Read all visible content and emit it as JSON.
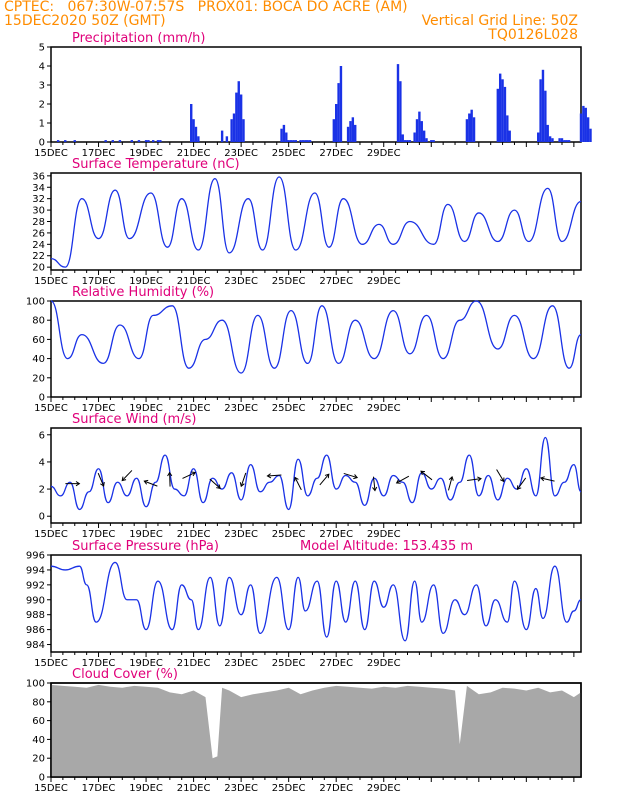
{
  "header": {
    "line1": "CPTEC:   067:30W-07:57S   PROX01: BOCA DO ACRE (AM)",
    "line2": "15DEC2020 50Z (GMT)",
    "right2": "Vertical Grid Line: 50Z",
    "right3": "TQ0126L028"
  },
  "colors": {
    "header": "#ff8c00",
    "title": "#e0007a",
    "line": "#1a32e6",
    "cloud": "#a8a8a8"
  },
  "date_labels": [
    "15DEC",
    "17DEC",
    "19DEC",
    "21DEC",
    "23DEC",
    "25DEC",
    "27DEC",
    "29DEC"
  ],
  "chart_data": [
    {
      "id": "precip",
      "type": "bar",
      "title": "Precipitation (mm/h)",
      "ylim": [
        0,
        5
      ],
      "yticks": [
        "0",
        "1",
        "2",
        "3",
        "4",
        "5"
      ],
      "x": [
        0.3,
        0.6,
        1.0,
        2.3,
        2.6,
        2.9,
        3.4,
        3.7,
        4.0,
        4.1,
        4.3,
        4.5,
        4.6,
        5.9,
        6.0,
        6.1,
        6.2,
        7.2,
        7.4,
        7.6,
        7.7,
        7.8,
        7.9,
        8.0,
        8.1,
        9.7,
        9.8,
        9.9,
        10.0,
        10.1,
        10.2,
        10.3,
        10.5,
        10.6,
        10.7,
        10.8,
        10.9,
        11.9,
        12.0,
        12.1,
        12.2,
        12.5,
        12.6,
        12.7,
        12.8,
        14.6,
        14.7,
        14.8,
        14.9,
        15.0,
        15.1,
        15.3,
        15.4,
        15.5,
        15.6,
        15.7,
        15.8,
        16.0,
        16.1,
        17.5,
        17.6,
        17.7,
        17.8,
        18.8,
        18.9,
        19.0,
        19.1,
        19.2,
        19.3,
        20.5,
        20.6,
        20.7,
        20.8,
        20.9,
        21.0,
        21.1,
        21.4,
        21.5,
        21.6,
        21.7,
        21.8,
        22.3,
        22.4,
        22.5,
        22.6,
        22.7
      ],
      "values": [
        0.1,
        0.1,
        0.1,
        0.1,
        0.1,
        0.1,
        0.1,
        0.1,
        0.1,
        0.1,
        0.1,
        0.1,
        0.1,
        2.0,
        1.2,
        0.8,
        0.3,
        0.6,
        0.3,
        1.2,
        1.5,
        2.6,
        3.2,
        2.5,
        1.2,
        0.7,
        0.9,
        0.5,
        0.1,
        0.1,
        0.1,
        0.1,
        0.1,
        0.1,
        0.1,
        0.1,
        0.1,
        1.2,
        2.0,
        3.1,
        4.0,
        0.8,
        1.1,
        1.3,
        0.9,
        4.1,
        3.2,
        0.4,
        0.1,
        0.1,
        0.1,
        0.5,
        1.2,
        1.6,
        1.1,
        0.6,
        0.2,
        0.1,
        0.1,
        1.2,
        1.5,
        1.7,
        1.3,
        2.8,
        3.6,
        3.3,
        2.9,
        1.4,
        0.6,
        0.5,
        3.3,
        3.8,
        2.7,
        0.9,
        0.3,
        0.2,
        0.2,
        0.2,
        0.1,
        0.1,
        0.1,
        1.5,
        1.9,
        1.8,
        1.3,
        0.7
      ]
    },
    {
      "id": "temp",
      "type": "line",
      "title": "Surface Temperature (nC)",
      "ylim": [
        19.5,
        36.5
      ],
      "yticks": [
        "20",
        "22",
        "24",
        "26",
        "28",
        "30",
        "32",
        "34",
        "36"
      ],
      "x": [
        0,
        0.6,
        1.3,
        2.0,
        2.7,
        3.3,
        4.2,
        4.9,
        5.5,
        6.2,
        6.9,
        7.5,
        8.3,
        8.9,
        9.6,
        10.3,
        11.1,
        11.7,
        12.3,
        13.1,
        13.8,
        14.4,
        15.1,
        16.1,
        16.7,
        17.4,
        18.0,
        18.8,
        19.5,
        20.1,
        20.9,
        21.5,
        22.3
      ],
      "values": [
        21.5,
        20.0,
        32.0,
        25.0,
        33.5,
        25.0,
        33.0,
        23.5,
        32.0,
        23.0,
        35.5,
        22.5,
        32.0,
        23.0,
        35.8,
        23.0,
        33.0,
        23.5,
        32.0,
        24.0,
        27.5,
        24.0,
        28.0,
        24.0,
        31.0,
        24.5,
        29.5,
        24.5,
        30.0,
        24.5,
        33.8,
        24.5,
        31.5
      ]
    },
    {
      "id": "rh",
      "type": "line",
      "title": "Relative Humidity (%)",
      "ylim": [
        0,
        100
      ],
      "yticks": [
        "0",
        "20",
        "40",
        "60",
        "80",
        "100"
      ],
      "x": [
        0,
        0.7,
        1.3,
        2.2,
        2.9,
        3.7,
        4.3,
        5.1,
        5.8,
        6.5,
        7.2,
        8.0,
        8.7,
        9.4,
        10.1,
        10.8,
        11.4,
        12.1,
        12.8,
        13.6,
        14.4,
        15.1,
        15.8,
        16.5,
        17.2,
        17.9,
        18.8,
        19.5,
        20.3,
        21.1,
        21.8,
        22.3
      ],
      "values": [
        100,
        40,
        65,
        35,
        75,
        40,
        85,
        95,
        30,
        60,
        80,
        25,
        85,
        30,
        90,
        35,
        95,
        35,
        80,
        40,
        90,
        45,
        85,
        40,
        80,
        100,
        50,
        85,
        40,
        95,
        30,
        65
      ]
    },
    {
      "id": "wind",
      "type": "line",
      "title": "Surface Wind (m/s)",
      "ylim": [
        -0.5,
        6.5
      ],
      "yticks": [
        "0",
        "2",
        "4",
        "6"
      ],
      "x": [
        0,
        0.4,
        0.8,
        1.2,
        1.6,
        2.0,
        2.4,
        2.8,
        3.2,
        3.6,
        4.0,
        4.4,
        4.8,
        5.2,
        5.6,
        6.0,
        6.4,
        6.8,
        7.2,
        7.6,
        8.0,
        8.4,
        8.8,
        9.2,
        9.6,
        10.0,
        10.4,
        10.8,
        11.2,
        11.6,
        12.0,
        12.4,
        12.8,
        13.2,
        13.6,
        14.0,
        14.4,
        14.8,
        15.2,
        15.6,
        16.0,
        16.4,
        16.8,
        17.2,
        17.6,
        18.0,
        18.4,
        18.8,
        19.2,
        19.6,
        20.0,
        20.4,
        20.8,
        21.2,
        21.6,
        22.0,
        22.3
      ],
      "values": [
        2.2,
        1.5,
        2.5,
        0.5,
        1.8,
        3.5,
        1.0,
        2.5,
        1.5,
        2.8,
        0.7,
        2.5,
        4.5,
        2.0,
        1.5,
        3.5,
        1.0,
        2.8,
        2.0,
        3.2,
        1.2,
        3.8,
        1.8,
        2.5,
        3.0,
        0.5,
        4.2,
        1.5,
        2.8,
        4.5,
        2.0,
        3.0,
        2.5,
        0.8,
        2.8,
        1.5,
        3.0,
        2.5,
        1.0,
        3.2,
        2.0,
        2.8,
        1.2,
        2.5,
        4.5,
        1.5,
        3.0,
        1.2,
        2.8,
        2.0,
        3.5,
        1.5,
        5.8,
        1.5,
        2.5,
        3.8,
        1.8
      ]
    },
    {
      "id": "press",
      "type": "line",
      "title": "Surface Pressure (hPa)",
      "annotation": "Model Altitude: 153.435 m",
      "ylim": [
        983,
        996
      ],
      "yticks": [
        "984",
        "986",
        "988",
        "990",
        "992",
        "994",
        "996"
      ],
      "x": [
        0,
        0.6,
        1.2,
        1.5,
        1.9,
        2.7,
        3.2,
        3.6,
        4.0,
        4.5,
        5.1,
        5.5,
        5.9,
        6.2,
        6.7,
        7.1,
        7.5,
        8.0,
        8.4,
        8.8,
        9.5,
        10.0,
        10.4,
        10.7,
        11.2,
        11.6,
        12.0,
        12.4,
        12.8,
        13.2,
        13.6,
        14.0,
        14.4,
        14.9,
        15.3,
        15.6,
        16.1,
        16.5,
        17.0,
        17.4,
        17.9,
        18.3,
        18.7,
        19.2,
        19.5,
        20.0,
        20.4,
        20.7,
        21.2,
        21.7,
        22.0,
        22.3
      ],
      "values": [
        994.5,
        994.0,
        994.5,
        992.0,
        987.0,
        995.0,
        990.0,
        990.0,
        986.0,
        992.5,
        986.0,
        992.0,
        990.0,
        986.0,
        993.0,
        986.5,
        993.0,
        988.0,
        992.0,
        985.5,
        993.0,
        986.0,
        993.0,
        988.5,
        992.5,
        985.0,
        992.5,
        987.0,
        992.5,
        986.0,
        992.5,
        989.0,
        992.0,
        984.5,
        992.5,
        987.0,
        992.0,
        985.5,
        990.0,
        988.0,
        992.0,
        986.5,
        990.0,
        987.0,
        992.5,
        986.0,
        991.5,
        987.5,
        994.5,
        987.0,
        988.5,
        990.0
      ]
    },
    {
      "id": "cloud",
      "type": "area",
      "title": "Cloud Cover (%)",
      "ylim": [
        0,
        100
      ],
      "yticks": [
        "0",
        "20",
        "40",
        "60",
        "80",
        "100"
      ],
      "x": [
        0,
        0.5,
        1.0,
        1.5,
        2.0,
        2.5,
        3.0,
        3.5,
        4.0,
        4.5,
        5.0,
        5.5,
        6.0,
        6.5,
        6.8,
        7.0,
        7.2,
        7.5,
        8.0,
        8.5,
        9.0,
        9.5,
        10.0,
        10.5,
        11.0,
        11.5,
        12.0,
        12.5,
        13.0,
        13.5,
        14.0,
        14.5,
        15.0,
        15.5,
        16.0,
        16.5,
        17.0,
        17.2,
        17.5,
        18.0,
        18.5,
        19.0,
        19.5,
        20.0,
        20.5,
        21.0,
        21.5,
        22.0,
        22.3
      ],
      "values": [
        98,
        97,
        96,
        95,
        98,
        96,
        95,
        97,
        96,
        95,
        90,
        88,
        92,
        85,
        20,
        22,
        95,
        92,
        85,
        88,
        90,
        92,
        95,
        88,
        92,
        95,
        97,
        96,
        95,
        94,
        96,
        95,
        97,
        96,
        95,
        94,
        92,
        35,
        97,
        88,
        90,
        95,
        94,
        92,
        95,
        90,
        92,
        85,
        90
      ]
    }
  ]
}
